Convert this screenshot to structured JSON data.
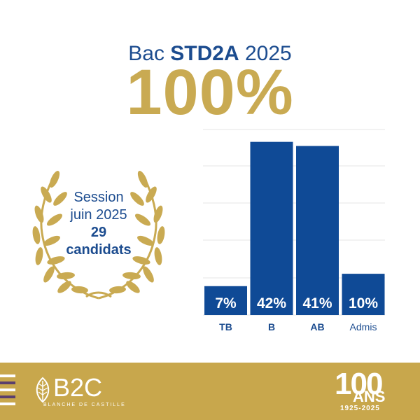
{
  "colors": {
    "navy": "#1c4c8f",
    "gold": "#c9aa52",
    "bar": "#0f4a96",
    "footer_gold": "#c8a74c",
    "grid": "#e4e4e4"
  },
  "header": {
    "prefix": "Bac",
    "strong": "STD2A",
    "suffix": "2025",
    "big_value": "100%"
  },
  "session": {
    "line1": "Session",
    "line2": "juin 2025",
    "line3": "29",
    "line4": "candidats"
  },
  "chart_data": {
    "type": "bar",
    "categories": [
      "TB",
      "B",
      "AB",
      "Admis"
    ],
    "values": [
      7,
      42,
      41,
      10
    ],
    "value_labels": [
      "7%",
      "42%",
      "41%",
      "10%"
    ],
    "ylim": [
      0,
      45
    ],
    "grid": true,
    "xlabel": "",
    "ylabel": ""
  },
  "footer": {
    "logo_text": "B2C",
    "logo_sub": "BLANCHE DE CASTILLE",
    "anniversary_number": "100",
    "anniversary_word": "ANS",
    "anniversary_years": "1925-2025"
  },
  "icons": [
    "laurel-wreath-icon",
    "leaf-logo-icon",
    "menu-stripes-icon"
  ]
}
